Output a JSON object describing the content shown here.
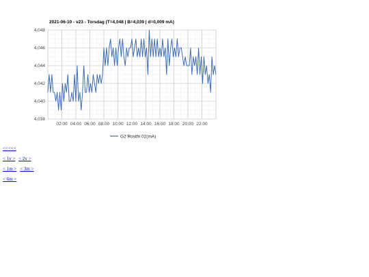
{
  "chart_data": {
    "type": "line",
    "title": "2021-06-10 - v23 - Torsdag (T=4,048 | B=4,039 | d=0,009 mA)",
    "xlabel": "",
    "ylabel": "",
    "x_ticks": [
      "02:00",
      "04:00",
      "06:00",
      "08:00",
      "10:00",
      "12:00",
      "14:00",
      "16:00",
      "18:00",
      "20:00",
      "22:00"
    ],
    "y_ticks": [
      "4,038",
      "4,040",
      "4,042",
      "4,044",
      "4,046",
      "4,048"
    ],
    "ylim": [
      4.038,
      4.048
    ],
    "xlim_hours": [
      0,
      24
    ],
    "grid": true,
    "legend_position": "bottom",
    "line_color": "#3c6cb4",
    "series": [
      {
        "name": "G2 Rostfri 02(mA)",
        "values": [
          4.041,
          4.043,
          4.041,
          4.043,
          4.041,
          4.041,
          4.04,
          4.041,
          4.039,
          4.041,
          4.039,
          4.042,
          4.04,
          4.042,
          4.041,
          4.043,
          4.04,
          4.04,
          4.041,
          4.04,
          4.043,
          4.04,
          4.044,
          4.04,
          4.041,
          4.039,
          4.041,
          4.044,
          4.041,
          4.041,
          4.043,
          4.041,
          4.042,
          4.041,
          4.043,
          4.042,
          4.041,
          4.043,
          4.042,
          4.043,
          4.042,
          4.043,
          4.046,
          4.044,
          4.046,
          4.044,
          4.046,
          4.047,
          4.045,
          4.046,
          4.044,
          4.046,
          4.044,
          4.046,
          4.047,
          4.045,
          4.047,
          4.045,
          4.044,
          4.046,
          4.045,
          4.046,
          4.046,
          4.047,
          4.045,
          4.046,
          4.047,
          4.045,
          4.046,
          4.045,
          4.047,
          4.045,
          4.047,
          4.045,
          4.046,
          4.043,
          4.048,
          4.045,
          4.047,
          4.045,
          4.047,
          4.045,
          4.047,
          4.045,
          4.046,
          4.045,
          4.047,
          4.045,
          4.046,
          4.043,
          4.047,
          4.044,
          4.046,
          4.047,
          4.045,
          4.046,
          4.045,
          4.047,
          4.045,
          4.046,
          4.046,
          4.045,
          4.044,
          4.045,
          4.044,
          4.044,
          4.044,
          4.046,
          4.043,
          4.045,
          4.044,
          4.045,
          4.043,
          4.046,
          4.043,
          4.045,
          4.042,
          4.045,
          4.043,
          4.044,
          4.042,
          4.043,
          4.041,
          4.045,
          4.043,
          4.044,
          4.043
        ]
      }
    ]
  },
  "nav": {
    "row1": [
      "<<<<<"
    ],
    "row2": [
      "< 1v >",
      "< 2v >"
    ],
    "row3": [
      "< 1m >",
      "< 3m >"
    ],
    "row4": [
      "< 6m >"
    ]
  }
}
